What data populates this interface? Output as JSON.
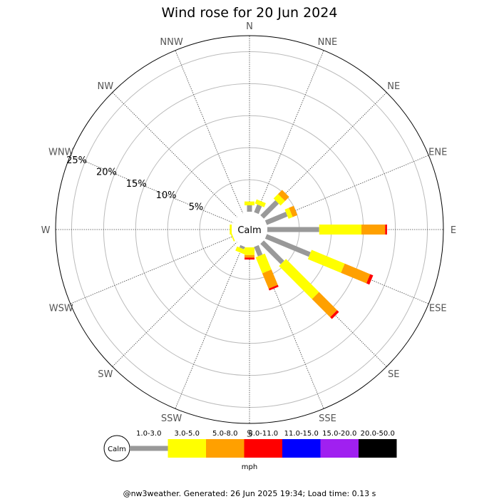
{
  "chart_data": {
    "type": "wind-rose",
    "title": "Wind rose for 20 Jun 2024",
    "directions": [
      "N",
      "NNE",
      "NE",
      "ENE",
      "E",
      "ESE",
      "SE",
      "SSE",
      "S",
      "SSW",
      "SW",
      "WSW",
      "W",
      "WNW",
      "NW",
      "NNW"
    ],
    "ring_labels": [
      "5%",
      "10%",
      "15%",
      "20%",
      "25%"
    ],
    "rings_percent": [
      5,
      10,
      15,
      20,
      25
    ],
    "r_max_percent": 27.5,
    "calm_label": "Calm",
    "unit": "mph",
    "speed_bins": [
      {
        "label": "1.0-3.0",
        "color": "#999999"
      },
      {
        "label": "3.0-5.0",
        "color": "#ffff00"
      },
      {
        "label": "5.0-8.0",
        "color": "#ffa000"
      },
      {
        "label": "8.0-11.0",
        "color": "#ff0000"
      },
      {
        "label": "11.0-15.0",
        "color": "#0000ff"
      },
      {
        "label": "15.0-20.0",
        "color": "#a020f0"
      },
      {
        "label": "20.0-50.0",
        "color": "#000000"
      }
    ],
    "series": [
      {
        "name": "1.0-3.0",
        "values": [
          1.0,
          1.3,
          3.3,
          3.5,
          8.1,
          7.4,
          4.5,
          1.6,
          0.0,
          0.4,
          0.0,
          0.0,
          0.0,
          0.0,
          0.0,
          0.0
        ]
      },
      {
        "name": "3.0-5.0",
        "values": [
          0.6,
          0.7,
          1.0,
          0.7,
          6.6,
          5.6,
          7.3,
          2.7,
          1.2,
          0.7,
          0.0,
          0.2,
          0.3,
          0.0,
          0.0,
          0.0
        ]
      },
      {
        "name": "5.0-8.0",
        "values": [
          0.0,
          0.0,
          0.9,
          0.8,
          3.7,
          4.3,
          4.0,
          2.6,
          0.4,
          0.0,
          0.0,
          0.0,
          0.0,
          0.0,
          0.0,
          0.0
        ]
      },
      {
        "name": "8.0-11.0",
        "values": [
          0.0,
          0.0,
          0.0,
          0.0,
          0.3,
          0.5,
          0.4,
          0.3,
          0.3,
          0.0,
          0.0,
          0.0,
          0.0,
          0.0,
          0.0,
          0.0
        ]
      },
      {
        "name": "11.0-15.0",
        "values": [
          0,
          0,
          0,
          0,
          0,
          0,
          0,
          0,
          0,
          0,
          0,
          0,
          0,
          0,
          0,
          0
        ]
      },
      {
        "name": "15.0-20.0",
        "values": [
          0,
          0,
          0,
          0,
          0,
          0,
          0,
          0,
          0,
          0,
          0,
          0,
          0,
          0,
          0,
          0
        ]
      },
      {
        "name": "20.0-50.0",
        "values": [
          0,
          0,
          0,
          0,
          0,
          0,
          0,
          0,
          0,
          0,
          0,
          0,
          0,
          0,
          0,
          0
        ]
      }
    ]
  },
  "footer": "@nw3weather. Generated: 26 Jun 2025 19:34; Load time: 0.13 s"
}
